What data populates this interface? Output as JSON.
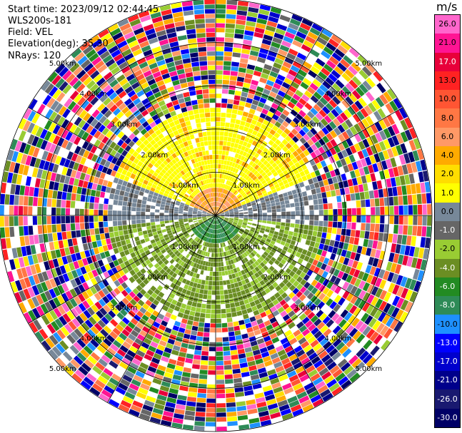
{
  "info": {
    "start_time": "Start time: 2023/09/12 02:44:45",
    "instrument": "WLS200s-181",
    "field": "Field: VEL",
    "elevation": "Elevation(deg): 35.30",
    "nrays": "NRays: 120"
  },
  "colorbar": {
    "title": "m/s",
    "labels": [
      "26.0",
      "21.0",
      "17.0",
      "13.0",
      "10.0",
      "8.0",
      "6.0",
      "4.0",
      "2.0",
      "1.0",
      "0.0",
      "-1.0",
      "-2.0",
      "-4.0",
      "-6.0",
      "-8.0",
      "-10.0",
      "-13.0",
      "-17.0",
      "-21.0",
      "-26.0",
      "-30.0"
    ],
    "colors": [
      "#ff66cc",
      "#ff1493",
      "#e8003a",
      "#ff2222",
      "#ff5533",
      "#ff7744",
      "#ff9966",
      "#ffaa00",
      "#ffdd00",
      "#ffff00",
      "#778899",
      "#666666",
      "#99cc33",
      "#6b8e23",
      "#228b22",
      "#2e8b57",
      "#1e90ff",
      "#0000ff",
      "#0000cd",
      "#00008b",
      "#191970",
      "#000066"
    ]
  },
  "chart_data": {
    "type": "heatmap",
    "projection": "polar PPI",
    "field": "VEL",
    "units": "m/s",
    "nrays": 120,
    "range_ring_labels": [
      "1.00km",
      "2.00km",
      "3.00km",
      "4.00km",
      "5.00km"
    ],
    "range_ring_km": [
      1,
      2,
      3,
      4,
      5
    ],
    "max_range_km": 5,
    "value_range": [
      -30.0,
      26.0
    ],
    "regions": [
      {
        "range_km": [
          0,
          2.5
        ],
        "sector": "north half",
        "typical_velocity_ms": 2.5
      },
      {
        "range_km": [
          0,
          2.5
        ],
        "sector": "east-west band",
        "typical_velocity_ms": 0.0
      },
      {
        "range_km": [
          0,
          2.5
        ],
        "sector": "south half",
        "typical_velocity_ms": -3.0
      },
      {
        "range_km": [
          2.5,
          5
        ],
        "sector": "all",
        "typical_velocity_ms": "noise"
      }
    ]
  }
}
